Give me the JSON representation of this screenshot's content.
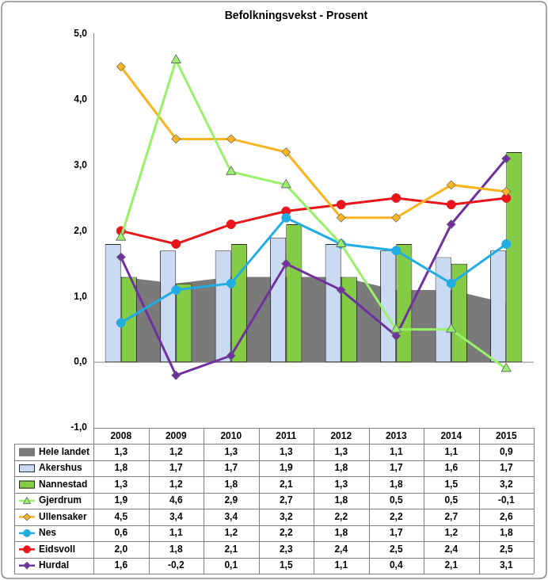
{
  "chart_data": {
    "type": "bar",
    "title": "Befolkningsvekst - Prosent",
    "categories": [
      "2008",
      "2009",
      "2010",
      "2011",
      "2012",
      "2013",
      "2014",
      "2015"
    ],
    "ylim": [
      -1,
      5
    ],
    "yticks": [
      {
        "value": -1,
        "label": "-1,0"
      },
      {
        "value": 0,
        "label": "0,0"
      },
      {
        "value": 1,
        "label": "1,0"
      },
      {
        "value": 2,
        "label": "2,0"
      },
      {
        "value": 3,
        "label": "3,0"
      },
      {
        "value": 4,
        "label": "4,0"
      },
      {
        "value": 5,
        "label": "5,0"
      }
    ],
    "grid": false,
    "series": [
      {
        "name": "Hele landet",
        "type": "area",
        "color": "#7a7a7a",
        "marker": "none",
        "values": [
          1.3,
          1.2,
          1.3,
          1.3,
          1.3,
          1.1,
          1.1,
          0.9
        ],
        "value_labels": [
          "1,3",
          "1,2",
          "1,3",
          "1,3",
          "1,3",
          "1,1",
          "1,1",
          "0,9"
        ]
      },
      {
        "name": "Akershus",
        "type": "bar",
        "color": "#c9daf2",
        "marker": "none",
        "values": [
          1.8,
          1.7,
          1.7,
          1.9,
          1.8,
          1.7,
          1.6,
          1.7
        ],
        "value_labels": [
          "1,8",
          "1,7",
          "1,7",
          "1,9",
          "1,8",
          "1,7",
          "1,6",
          "1,7"
        ]
      },
      {
        "name": "Nannestad",
        "type": "bar",
        "color": "#84cc44",
        "marker": "none",
        "values": [
          1.3,
          1.2,
          1.8,
          2.1,
          1.3,
          1.8,
          1.5,
          3.2
        ],
        "value_labels": [
          "1,3",
          "1,2",
          "1,8",
          "2,1",
          "1,3",
          "1,8",
          "1,5",
          "3,2"
        ]
      },
      {
        "name": "Gjerdrum",
        "type": "line",
        "color": "#99f06a",
        "marker": "triangle",
        "values": [
          1.9,
          4.6,
          2.9,
          2.7,
          1.8,
          0.5,
          0.5,
          -0.1
        ],
        "value_labels": [
          "1,9",
          "4,6",
          "2,9",
          "2,7",
          "1,8",
          "0,5",
          "0,5",
          "-0,1"
        ]
      },
      {
        "name": "Ullensaker",
        "type": "line",
        "color": "#f7b521",
        "marker": "diamond",
        "values": [
          4.5,
          3.4,
          3.4,
          3.2,
          2.2,
          2.2,
          2.7,
          2.6
        ],
        "value_labels": [
          "4,5",
          "3,4",
          "3,4",
          "3,2",
          "2,2",
          "2,2",
          "2,7",
          "2,6"
        ]
      },
      {
        "name": "Nes",
        "type": "line",
        "color": "#22ade2",
        "marker": "circle",
        "values": [
          0.6,
          1.1,
          1.2,
          2.2,
          1.8,
          1.7,
          1.2,
          1.8
        ],
        "value_labels": [
          "0,6",
          "1,1",
          "1,2",
          "2,2",
          "1,8",
          "1,7",
          "1,2",
          "1,8"
        ]
      },
      {
        "name": "Eidsvoll",
        "type": "line",
        "color": "#e8161a",
        "marker": "circle",
        "values": [
          2.0,
          1.8,
          2.1,
          2.3,
          2.4,
          2.5,
          2.4,
          2.5
        ],
        "value_labels": [
          "2,0",
          "1,8",
          "2,1",
          "2,3",
          "2,4",
          "2,5",
          "2,4",
          "2,5"
        ]
      },
      {
        "name": "Hurdal",
        "type": "line",
        "color": "#7030a0",
        "marker": "diamond",
        "values": [
          1.6,
          -0.2,
          0.1,
          1.5,
          1.1,
          0.4,
          2.1,
          3.1
        ],
        "value_labels": [
          "1,6",
          "-0,2",
          "0,1",
          "1,5",
          "1,1",
          "0,4",
          "2,1",
          "3,1"
        ]
      }
    ]
  }
}
